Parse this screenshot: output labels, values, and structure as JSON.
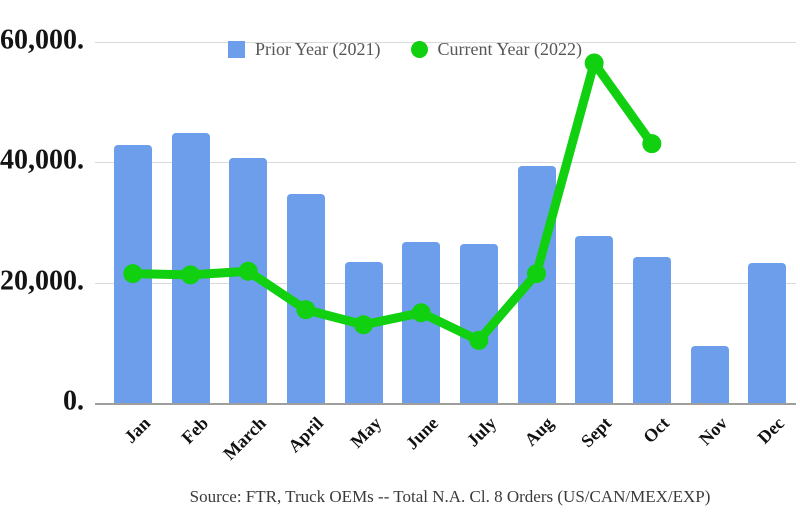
{
  "legend": {
    "items": [
      {
        "label": "Prior Year (2021)",
        "swatch": "square",
        "color": "#6d9eeb"
      },
      {
        "label": "Current Year (2022)",
        "swatch": "circle",
        "color": "#10d010"
      }
    ]
  },
  "source_note": "Source: FTR, Truck OEMs -- Total N.A. Cl. 8 Orders (US/CAN/MEX/EXP)",
  "colors": {
    "bar_blue": "#6d9eeb",
    "line_green": "#10d010",
    "gridline": "#dadada",
    "axis_line": "#9e9e9e",
    "axis_text": "#141414",
    "legend_text": "#575757",
    "source_text": "#3a3a3a"
  },
  "chart_data": {
    "type": "bar",
    "subtype": "combo bar+line",
    "title": "",
    "xlabel": "",
    "ylabel": "",
    "categories": [
      "Jan",
      "Feb",
      "March",
      "April",
      "May",
      "June",
      "July",
      "Aug",
      "Sept",
      "Oct",
      "Nov",
      "Dec"
    ],
    "series": [
      {
        "name": "Prior Year (2021)",
        "type": "bar",
        "color": "#6d9eeb",
        "values": [
          42800,
          44800,
          40700,
          34700,
          23500,
          26700,
          26400,
          39400,
          27800,
          24200,
          9500,
          23300
        ]
      },
      {
        "name": "Current Year (2022)",
        "type": "line",
        "color": "#10d010",
        "values": [
          21500,
          21300,
          21900,
          15500,
          13000,
          15000,
          10400,
          21500,
          56500,
          43100,
          null,
          null
        ]
      }
    ],
    "y_axis": {
      "min": 0,
      "max": 60000,
      "ticks": [
        {
          "value": 0,
          "label": "0."
        },
        {
          "value": 20000,
          "label": "20,000."
        },
        {
          "value": 40000,
          "label": "40,000."
        },
        {
          "value": 60000,
          "label": "60,000."
        }
      ]
    },
    "grid": true,
    "legend_position": "top"
  }
}
